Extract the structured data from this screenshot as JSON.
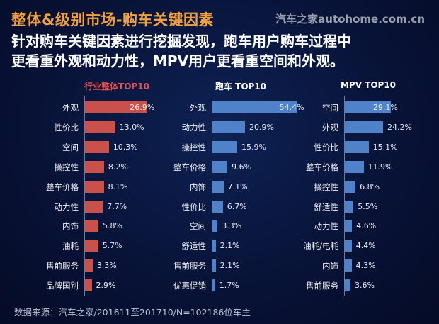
{
  "header": {
    "title": "整体&级别市场-购车关键因素",
    "logo": "汽车之家autohome.com.cn",
    "subtitle_line1": "针对购车关键因素进行挖掘发现，跑车用户购车过程中",
    "subtitle_line2": "更看重外观和动力性，MPV用户更看重空间和外观。"
  },
  "chart_data": [
    {
      "type": "bar",
      "orientation": "horizontal",
      "title": "行业整体TOP10",
      "color": "#c9504b",
      "title_color": "#e0524c",
      "categories": [
        "外观",
        "性价比",
        "空间",
        "操控性",
        "整车价格",
        "动力性",
        "内饰",
        "油耗",
        "售前服务",
        "品牌国别"
      ],
      "values": [
        26.9,
        13.0,
        10.3,
        8.2,
        8.1,
        7.7,
        5.8,
        5.7,
        3.3,
        2.9
      ],
      "unit": "%"
    },
    {
      "type": "bar",
      "orientation": "horizontal",
      "title": "跑车 TOP10",
      "color": "#4f82c8",
      "title_color": "#ffffff",
      "categories": [
        "外观",
        "动力性",
        "操控性",
        "整车价格",
        "内饰",
        "性价比",
        "空间",
        "舒适性",
        "售前服务",
        "优惠促销"
      ],
      "values": [
        54.4,
        20.9,
        15.9,
        9.6,
        7.1,
        6.7,
        3.3,
        2.1,
        2.1,
        1.7
      ],
      "unit": "%"
    },
    {
      "type": "bar",
      "orientation": "horizontal",
      "title": "MPV TOP10",
      "color": "#4f82c8",
      "title_color": "#ffffff",
      "categories": [
        "空间",
        "外观",
        "性价比",
        "整车价格",
        "操控性",
        "舒适性",
        "动力性",
        "油耗/电耗",
        "内饰",
        "售前服务"
      ],
      "values": [
        29.1,
        24.2,
        15.1,
        11.9,
        6.8,
        5.5,
        4.6,
        4.4,
        4.3,
        3.6
      ],
      "unit": "%"
    }
  ],
  "footer": {
    "source": "数据来源：汽车之家/201611至201710/N=102186位车主"
  }
}
